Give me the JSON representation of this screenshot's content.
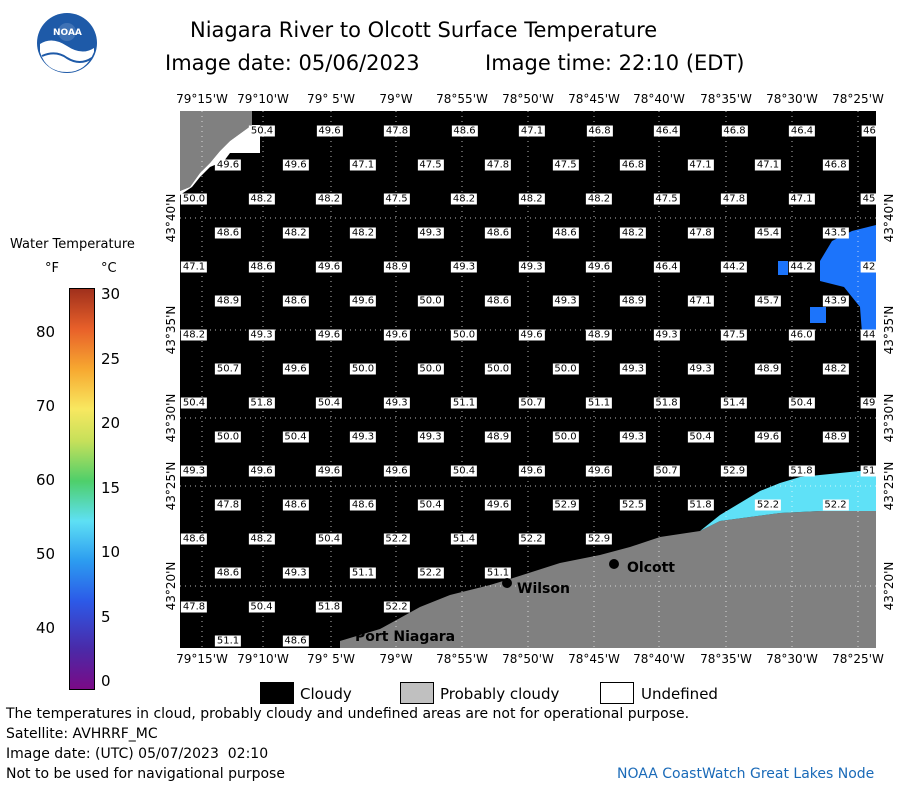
{
  "title": "Niagara River to Olcott Surface Temperature",
  "image_date_label": "Image date: 05/06/2023",
  "image_time_label": "Image time: 22:10 (EDT)",
  "logo_text": "NOAA",
  "legend": {
    "title": "Water Temperature",
    "unit_f": "°F",
    "unit_c": "°C",
    "f_ticks": [
      "80",
      "70",
      "60",
      "50",
      "40"
    ],
    "c_ticks": [
      "30",
      "25",
      "20",
      "15",
      "10",
      "5",
      "0"
    ]
  },
  "lon_labels": [
    "79°15'W",
    "79°10'W",
    "79° 5'W",
    "79°W",
    "78°55'W",
    "78°50'W",
    "78°45'W",
    "78°40'W",
    "78°35'W",
    "78°30'W",
    "78°25'W"
  ],
  "lat_labels": [
    "43°40'N",
    "43°35'N",
    "43°30'N",
    "43°25'N",
    "43°20'N"
  ],
  "places": {
    "olcott": "Olcott",
    "wilson": "Wilson",
    "port_niagara": "Port Niagara"
  },
  "colors": {
    "cloud": "#000000",
    "land": "#808080",
    "water_cyan": "#5fe1f7",
    "water_blue": "#1c74fb"
  },
  "temperature_rows": [
    [
      "50.4",
      "49.6",
      "47.8",
      "48.6",
      "47.1",
      "46.8",
      "46.4",
      "46.8",
      "46.4",
      "46"
    ],
    [
      "49.6",
      "49.6",
      "47.1",
      "47.5",
      "47.8",
      "47.5",
      "46.8",
      "47.1",
      "47.1",
      "46.8"
    ],
    [
      "50.0",
      "48.2",
      "48.2",
      "47.5",
      "48.2",
      "48.2",
      "48.2",
      "47.5",
      "47.8",
      "47.1",
      "45"
    ],
    [
      "48.6",
      "48.2",
      "48.2",
      "49.3",
      "48.6",
      "48.6",
      "48.2",
      "47.8",
      "45.4",
      "43.5"
    ],
    [
      "47.1",
      "48.6",
      "49.6",
      "48.9",
      "49.3",
      "49.3",
      "49.6",
      "46.4",
      "44.2",
      "44.2",
      "42"
    ],
    [
      "48.9",
      "48.6",
      "49.6",
      "50.0",
      "48.6",
      "49.3",
      "48.9",
      "47.1",
      "45.7",
      "43.9"
    ],
    [
      "48.2",
      "49.3",
      "49.6",
      "49.6",
      "50.0",
      "49.6",
      "48.9",
      "49.3",
      "47.5",
      "46.0",
      "44"
    ],
    [
      "50.7",
      "49.6",
      "50.0",
      "50.0",
      "50.0",
      "50.0",
      "49.3",
      "49.3",
      "48.9",
      "48.2"
    ],
    [
      "50.4",
      "51.8",
      "50.4",
      "49.3",
      "51.1",
      "50.7",
      "51.1",
      "51.8",
      "51.4",
      "50.4",
      "49"
    ],
    [
      "50.0",
      "50.4",
      "49.3",
      "49.3",
      "48.9",
      "50.0",
      "49.3",
      "50.4",
      "49.6",
      "48.9"
    ],
    [
      "49.3",
      "49.6",
      "49.6",
      "49.6",
      "50.4",
      "49.6",
      "49.6",
      "50.7",
      "52.9",
      "51.8",
      "51"
    ],
    [
      "47.8",
      "48.6",
      "48.6",
      "50.4",
      "49.6",
      "52.9",
      "52.5",
      "51.8",
      "52.2",
      "52.2"
    ],
    [
      "48.6",
      "48.2",
      "50.4",
      "52.2",
      "51.4",
      "52.2",
      "52.9"
    ],
    [
      "48.6",
      "49.3",
      "51.1",
      "52.2",
      "51.1"
    ],
    [
      "47.8",
      "50.4",
      "51.8",
      "52.2"
    ],
    [
      "51.1",
      "48.6"
    ]
  ],
  "key": {
    "cloudy": "Cloudy",
    "probably_cloudy": "Probably cloudy",
    "undefined": "Undefined"
  },
  "footer": {
    "disclaimer": "The temperatures in cloud, probably cloudy and undefined areas are not for operational purpose.",
    "satellite": "Satellite: AVHRRF_MC",
    "utc_date": "Image date: (UTC) 05/07/2023  02:10",
    "nav_warning": "Not to be used for navigational purpose",
    "credit": "NOAA CoastWatch Great Lakes Node"
  }
}
